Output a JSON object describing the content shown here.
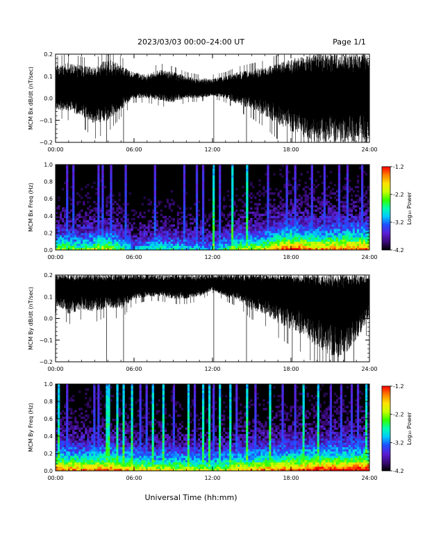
{
  "header": {
    "title": "2023/03/03  00:00–24:00 UT",
    "page": "Page 1/1"
  },
  "xaxis": {
    "label": "Universal Time (hh:mm)",
    "range_hours": [
      0,
      24
    ],
    "tick_labels": [
      "00:00",
      "06:00",
      "12:00",
      "18:00",
      "24:00"
    ],
    "tick_hours": [
      0,
      6,
      12,
      18,
      24
    ]
  },
  "colorbar": {
    "label": "Log₁₀ Power",
    "range": [
      -4.2,
      -1.2
    ],
    "tick_labels": [
      "-1.2",
      "-2.2",
      "-3.2",
      "-4.2"
    ],
    "tick_values": [
      -1.2,
      -2.2,
      -3.2,
      -4.2
    ],
    "colors": [
      "#000000",
      "#3a0a78",
      "#5a1fd6",
      "#1f4cff",
      "#00c8ff",
      "#00ffb0",
      "#33ff00",
      "#c8ff00",
      "#ffe000",
      "#ff8000",
      "#ff0000"
    ]
  },
  "chart_data": [
    {
      "type": "line",
      "ylabel": "MCM Bx dB/dt (nT/sec)",
      "ylim": [
        -0.2,
        0.2
      ],
      "ytick_labels": [
        "0.2",
        "0.1",
        "0.0",
        "−0.1",
        "−0.2"
      ],
      "ytick_values": [
        0.2,
        0.1,
        0.0,
        -0.1,
        -0.2
      ],
      "color": "#000000",
      "x_hours": [
        0,
        1,
        2,
        3,
        4,
        5,
        6,
        7,
        8,
        9,
        10,
        11,
        12,
        13,
        14,
        15,
        16,
        17,
        18,
        19,
        20,
        21,
        22,
        23,
        24
      ],
      "center": [
        0.04,
        0.04,
        0.04,
        0.04,
        0.04,
        0.04,
        0.05,
        0.05,
        0.05,
        0.05,
        0.045,
        0.04,
        0.04,
        0.045,
        0.05,
        0.05,
        0.05,
        0.05,
        0.045,
        0.04,
        0.04,
        0.04,
        0.04,
        0.04,
        0.04
      ],
      "upper": [
        0.15,
        0.16,
        0.15,
        0.14,
        0.18,
        0.15,
        0.12,
        0.11,
        0.13,
        0.12,
        0.1,
        0.09,
        0.09,
        0.1,
        0.12,
        0.13,
        0.14,
        0.16,
        0.18,
        0.19,
        0.2,
        0.2,
        0.2,
        0.2,
        0.2
      ],
      "lower": [
        -0.05,
        -0.06,
        -0.08,
        -0.12,
        -0.1,
        -0.05,
        0.0,
        0.0,
        -0.01,
        -0.02,
        0.0,
        0.0,
        0.01,
        0.0,
        -0.03,
        -0.05,
        -0.08,
        -0.12,
        -0.15,
        -0.18,
        -0.2,
        -0.2,
        -0.2,
        -0.2,
        -0.2
      ]
    },
    {
      "type": "heatmap",
      "ylabel": "MCM Bx Freq (Hz)",
      "ylim": [
        0.0,
        1.0
      ],
      "ytick_labels": [
        "1.0",
        "0.8",
        "0.6",
        "0.4",
        "0.2",
        "0.0"
      ],
      "ytick_values": [
        1.0,
        0.8,
        0.6,
        0.4,
        0.2,
        0.0
      ],
      "z_range": [
        -4.2,
        -1.2
      ],
      "activity_x_hours": [
        0,
        2,
        4,
        6,
        8,
        10,
        12,
        14,
        16,
        18,
        20,
        22,
        24
      ],
      "activity": [
        0.55,
        0.5,
        0.6,
        0.35,
        0.45,
        0.4,
        0.35,
        0.55,
        0.6,
        0.8,
        0.7,
        0.75,
        0.75
      ],
      "bright_streaks_hours": [
        12.1,
        13.5,
        14.6
      ],
      "moderate_streaks_hours": [
        0.9,
        1.3,
        3.2,
        3.6,
        4.3,
        5.4,
        7.6,
        9.9,
        10.8,
        11.3,
        12.5,
        16.3,
        17.6,
        18.4,
        19.6,
        20.5,
        21.7,
        22.4,
        23.5
      ]
    },
    {
      "type": "line",
      "ylabel": "MCM By dB/dt (nT/sec)",
      "ylim": [
        -0.2,
        0.2
      ],
      "ytick_labels": [
        "0.2",
        "0.1",
        "0.0",
        "−0.1",
        "−0.2"
      ],
      "ytick_values": [
        0.2,
        0.1,
        0.0,
        -0.1,
        -0.2
      ],
      "color": "#000000",
      "x_hours": [
        0,
        1,
        2,
        3,
        4,
        5,
        6,
        7,
        8,
        9,
        10,
        11,
        12,
        13,
        14,
        15,
        16,
        17,
        18,
        19,
        20,
        21,
        22,
        23,
        24
      ],
      "center": [
        0.14,
        0.14,
        0.15,
        0.15,
        0.15,
        0.15,
        0.15,
        0.15,
        0.15,
        0.15,
        0.15,
        0.15,
        0.16,
        0.15,
        0.15,
        0.15,
        0.15,
        0.15,
        0.14,
        0.13,
        0.11,
        0.09,
        0.08,
        0.1,
        0.13
      ],
      "upper": [
        0.2,
        0.2,
        0.2,
        0.2,
        0.2,
        0.2,
        0.2,
        0.2,
        0.2,
        0.2,
        0.2,
        0.2,
        0.2,
        0.2,
        0.2,
        0.2,
        0.2,
        0.2,
        0.2,
        0.2,
        0.2,
        0.2,
        0.2,
        0.2,
        0.2
      ],
      "lower": [
        0.06,
        0.02,
        0.04,
        0.03,
        0.05,
        0.04,
        0.09,
        0.1,
        0.1,
        0.09,
        0.09,
        0.1,
        0.13,
        0.1,
        0.08,
        0.04,
        0.02,
        -0.02,
        -0.05,
        -0.08,
        -0.13,
        -0.17,
        -0.18,
        -0.1,
        0.0
      ]
    },
    {
      "type": "heatmap",
      "ylabel": "MCM By Freq (Hz)",
      "ylim": [
        0.0,
        1.0
      ],
      "ytick_labels": [
        "1.0",
        "0.8",
        "0.6",
        "0.4",
        "0.2",
        "0.0"
      ],
      "ytick_values": [
        1.0,
        0.8,
        0.6,
        0.4,
        0.2,
        0.0
      ],
      "z_range": [
        -4.2,
        -1.2
      ],
      "activity_x_hours": [
        0,
        2,
        4,
        6,
        8,
        10,
        12,
        14,
        16,
        18,
        20,
        22,
        24
      ],
      "activity": [
        0.75,
        0.7,
        0.75,
        0.65,
        0.6,
        0.6,
        0.55,
        0.65,
        0.7,
        0.75,
        0.8,
        0.8,
        0.85
      ],
      "bright_streaks_hours": [
        0.3,
        4.0,
        4.7,
        5.2,
        5.8,
        7.4,
        8.2,
        10.1,
        11.3,
        11.8,
        12.6,
        13.4,
        14.6,
        16.4,
        19.0,
        20.1,
        23.7
      ],
      "moderate_streaks_hours": [
        0.9,
        1.6,
        2.4,
        3.0,
        3.3,
        6.5,
        7.0,
        9.0,
        9.6,
        10.6,
        12.1,
        13.9,
        15.3,
        17.3,
        18.3,
        21.0,
        21.8,
        22.6,
        23.2
      ]
    }
  ]
}
